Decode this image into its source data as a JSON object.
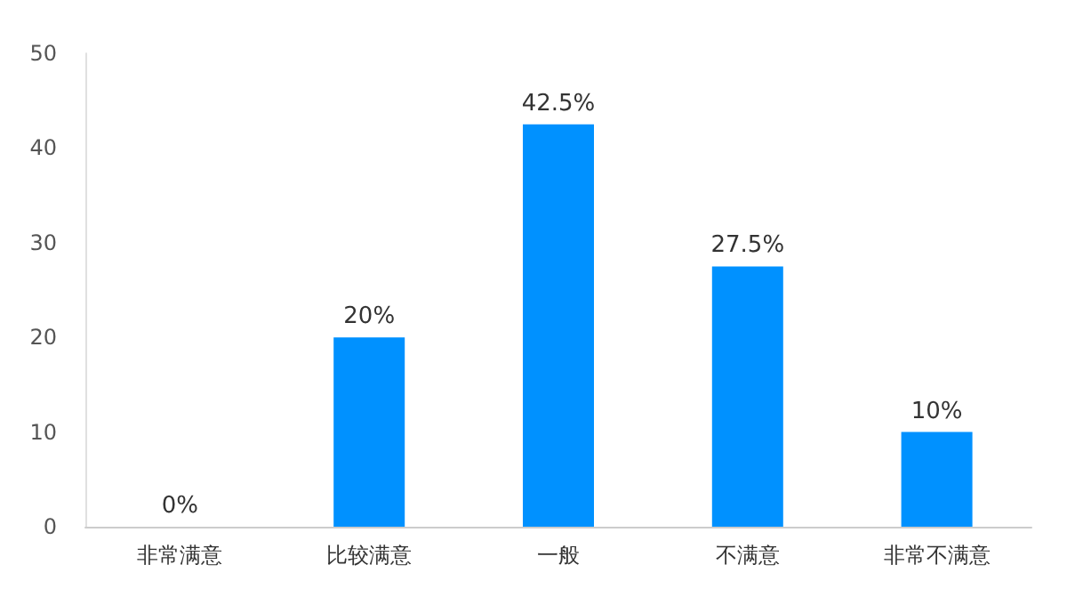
{
  "chart_data": {
    "type": "bar",
    "categories": [
      "非常满意",
      "比较满意",
      "一般",
      "不满意",
      "非常不满意"
    ],
    "values": [
      0,
      20,
      42.5,
      27.5,
      10
    ],
    "value_labels": [
      "0%",
      "20%",
      "42.5%",
      "27.5%",
      "10%"
    ],
    "color": "#0091ff",
    "ylim": [
      0,
      50
    ],
    "yticks": [
      0,
      10,
      20,
      30,
      40,
      50
    ],
    "grid": false
  }
}
